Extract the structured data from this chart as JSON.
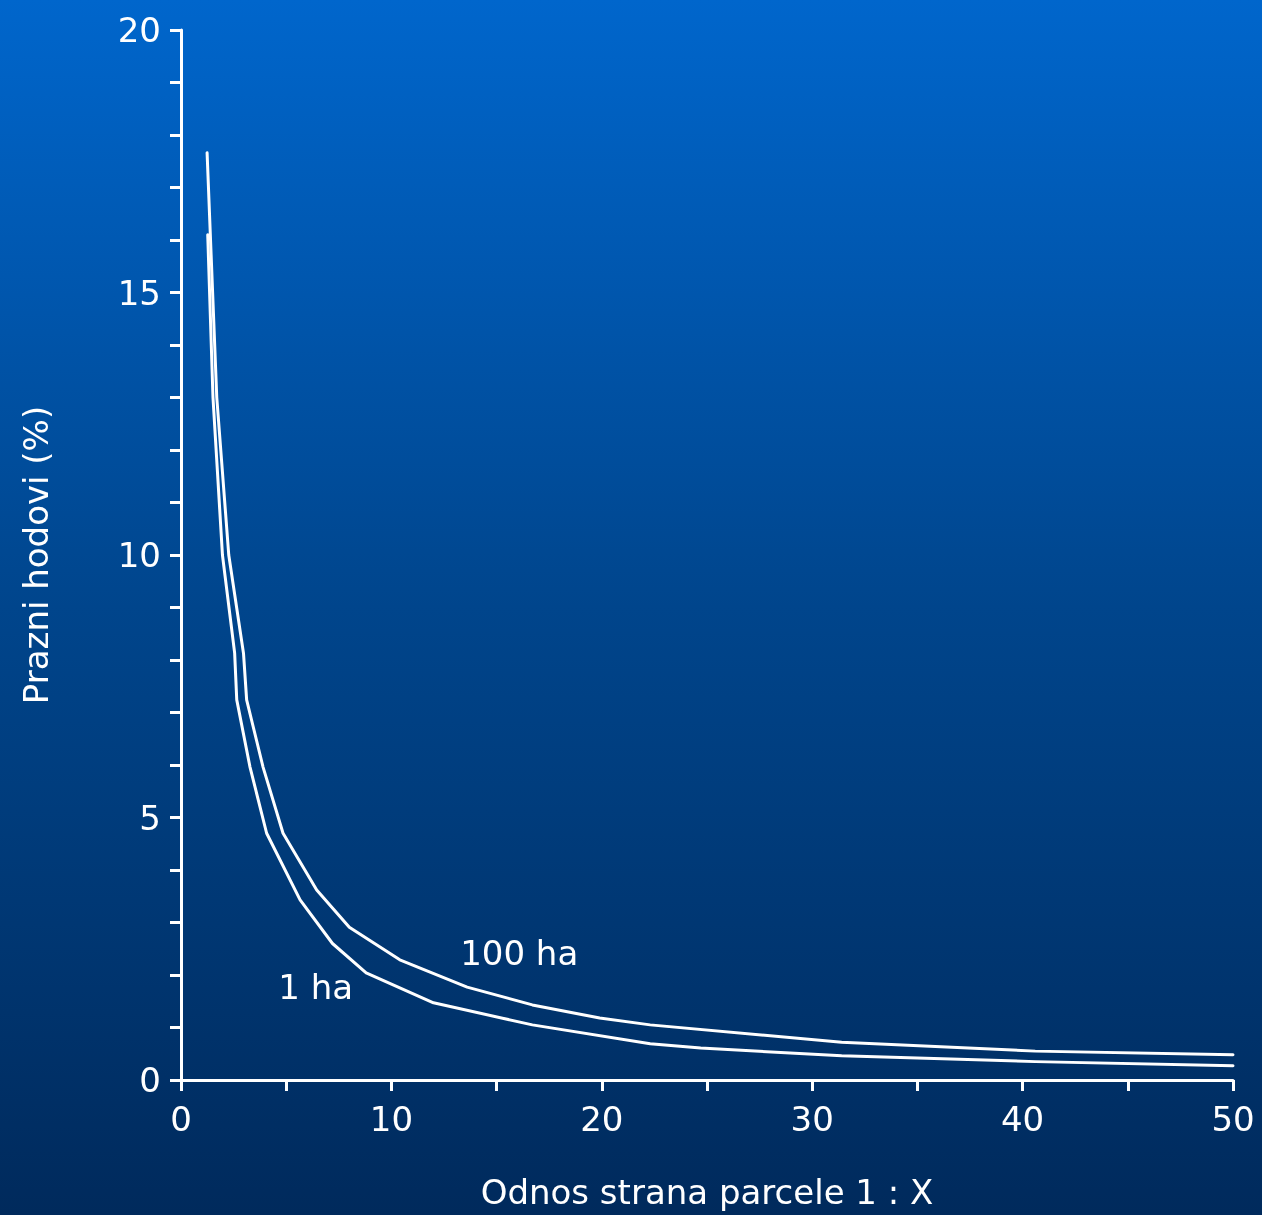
{
  "chart_data": {
    "type": "line",
    "xlabel": "Odnos strana parcele 1 : X",
    "ylabel": "Prazni hodovi (%)",
    "xlim": [
      0,
      50
    ],
    "ylim": [
      0,
      20
    ],
    "xticks": [
      0,
      10,
      20,
      30,
      40,
      50
    ],
    "yticks": [
      0,
      5,
      10,
      15,
      20
    ],
    "grid": false,
    "legend": false,
    "marker": "none",
    "line_style": "solid",
    "series": [
      {
        "name": "1 ha",
        "color": "#ffffff",
        "x": [
          1.27,
          1.52,
          1.97,
          2.55,
          2.65,
          3.28,
          4.07,
          5.66,
          7.2,
          8.8,
          12,
          16.7,
          22.3,
          24.7,
          31.4,
          40.6,
          50
        ],
        "values": [
          16.1,
          13.0,
          10.0,
          8.13,
          7.24,
          5.96,
          4.7,
          3.43,
          2.6,
          2.04,
          1.47,
          1.05,
          0.69,
          0.61,
          0.46,
          0.35,
          0.27
        ]
      },
      {
        "name": "100 ha",
        "color": "#ffffff",
        "x": [
          1.24,
          1.7,
          2.27,
          2.97,
          3.12,
          3.9,
          4.85,
          6.45,
          8.0,
          10.4,
          13.6,
          16.7,
          19.9,
          22.3,
          31.4,
          40.6,
          50
        ],
        "values": [
          17.66,
          13.0,
          10.0,
          8.13,
          7.24,
          5.96,
          4.7,
          3.62,
          2.91,
          2.29,
          1.77,
          1.43,
          1.18,
          1.05,
          0.72,
          0.55,
          0.48
        ]
      }
    ]
  }
}
